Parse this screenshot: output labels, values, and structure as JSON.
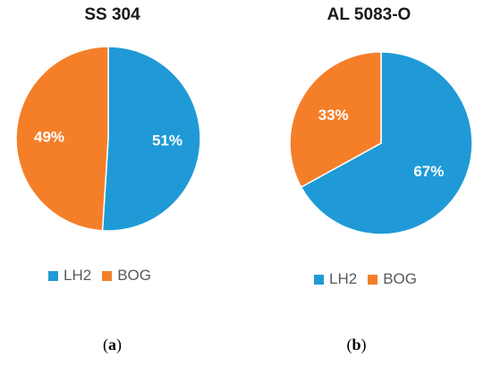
{
  "chart_data": [
    {
      "type": "pie",
      "title": "SS 304",
      "categories": [
        "LH2",
        "BOG"
      ],
      "values": [
        51,
        49
      ],
      "labels": [
        "51%",
        "49%"
      ],
      "colors": [
        "#1f9ad6",
        "#f57f29"
      ],
      "legend_position": "bottom",
      "panel_label": "a"
    },
    {
      "type": "pie",
      "title": "AL 5083-O",
      "categories": [
        "LH2",
        "BOG"
      ],
      "values": [
        67,
        33
      ],
      "labels": [
        "67%",
        "33%"
      ],
      "colors": [
        "#1f9ad6",
        "#f57f29"
      ],
      "legend_position": "bottom",
      "panel_label": "b"
    }
  ]
}
